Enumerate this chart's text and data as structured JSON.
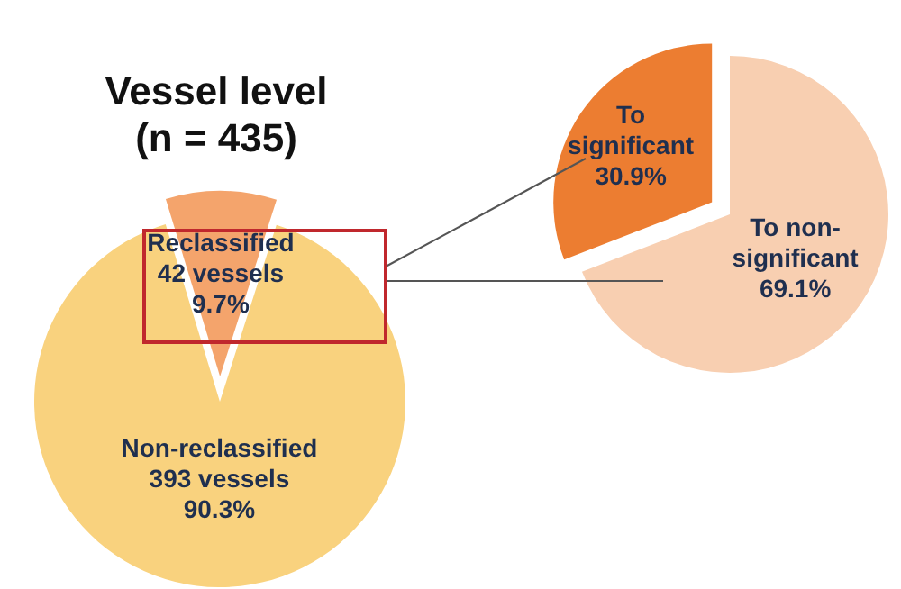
{
  "chart_data": [
    {
      "type": "pie",
      "title": "Vessel level\n(n = 435)",
      "categories": [
        "Reclassified",
        "Non-reclassified"
      ],
      "values": [
        42,
        393
      ],
      "colors": [
        "#f4a46c",
        "#f9d27e"
      ],
      "value_labels": [
        "42 vessels\n9.7%",
        "393 vessels\n90.3%"
      ],
      "legend": false
    },
    {
      "type": "pie",
      "categories": [
        "To significant",
        "To non-significant"
      ],
      "values": [
        30.9,
        69.1
      ],
      "colors": [
        "#ec7d31",
        "#f8cfb1"
      ],
      "value_labels": [
        "30.9%",
        "69.1%"
      ],
      "legend": false
    }
  ]
}
